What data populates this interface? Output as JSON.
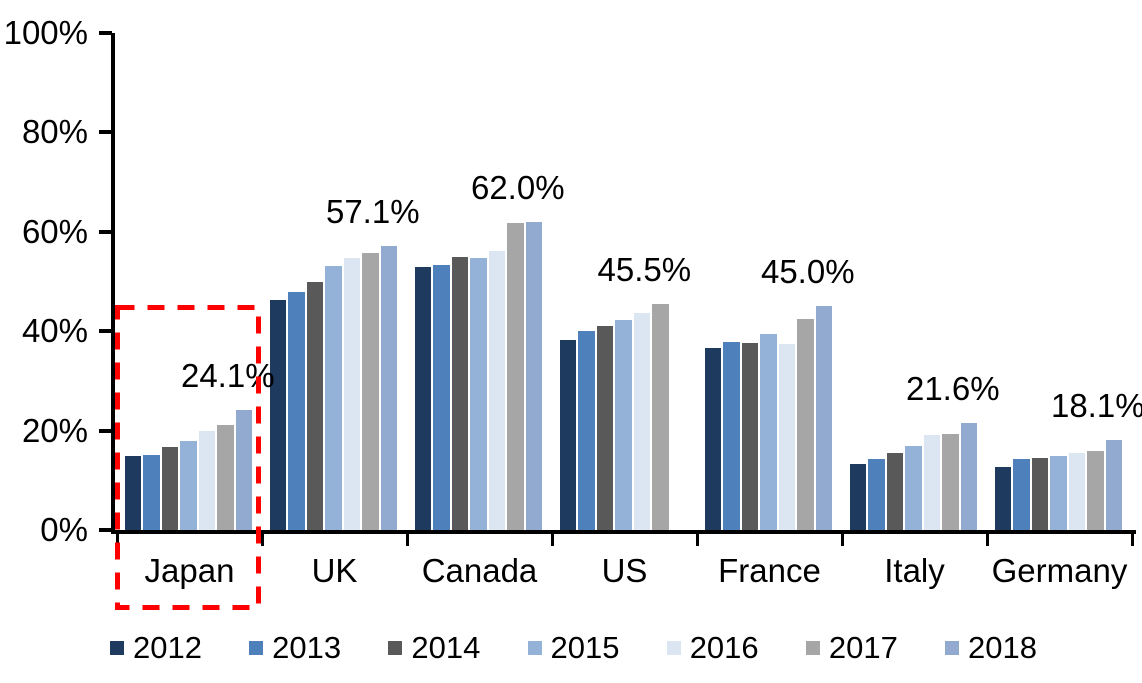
{
  "chart_data": {
    "type": "bar",
    "title": "",
    "xlabel": "",
    "ylabel": "",
    "ylim": [
      0,
      100
    ],
    "ytick_step": 20,
    "yticks": [
      "100%",
      "80%",
      "60%",
      "40%",
      "20%",
      "0%"
    ],
    "grid": false,
    "legend_position": "bottom",
    "categories": [
      "Japan",
      "UK",
      "Canada",
      "US",
      "France",
      "Italy",
      "Germany"
    ],
    "series": [
      {
        "name": "2012",
        "color": "#1F3A5F",
        "values": [
          14.9,
          46.3,
          52.9,
          38.2,
          36.6,
          13.3,
          12.6
        ]
      },
      {
        "name": "2013",
        "color": "#4E80BC",
        "values": [
          15.0,
          47.9,
          53.3,
          40.0,
          37.8,
          14.3,
          14.2
        ]
      },
      {
        "name": "2014",
        "color": "#595959",
        "values": [
          16.8,
          49.9,
          54.9,
          41.0,
          37.7,
          15.4,
          14.4
        ]
      },
      {
        "name": "2015",
        "color": "#94B2D8",
        "values": [
          18.0,
          53.2,
          54.7,
          42.2,
          39.5,
          17.0,
          14.8
        ]
      },
      {
        "name": "2016",
        "color": "#DCE6F2",
        "values": [
          20.0,
          54.7,
          56.2,
          43.6,
          37.4,
          19.1,
          15.4
        ]
      },
      {
        "name": "2017",
        "color": "#A6A6A6",
        "values": [
          21.1,
          55.7,
          61.7,
          45.5,
          42.4,
          19.3,
          15.9
        ]
      },
      {
        "name": "2018",
        "color": "#92A9D0",
        "values": [
          24.1,
          57.1,
          62.0,
          null,
          45.0,
          21.6,
          18.1
        ]
      }
    ],
    "data_labels": [
      {
        "category": "Japan",
        "text": "24.1%"
      },
      {
        "category": "UK",
        "text": "57.1%"
      },
      {
        "category": "Canada",
        "text": "62.0%"
      },
      {
        "category": "US",
        "text": "45.5%"
      },
      {
        "category": "France",
        "text": "45.0%"
      },
      {
        "category": "Italy",
        "text": "21.6%"
      },
      {
        "category": "Germany",
        "text": "18.1%"
      }
    ]
  },
  "highlight": {
    "shape": "dashed-rectangle",
    "color": "#FF0000",
    "category": "Japan"
  },
  "colors": {
    "axis": "#000000",
    "background": "#FFFFFF"
  }
}
